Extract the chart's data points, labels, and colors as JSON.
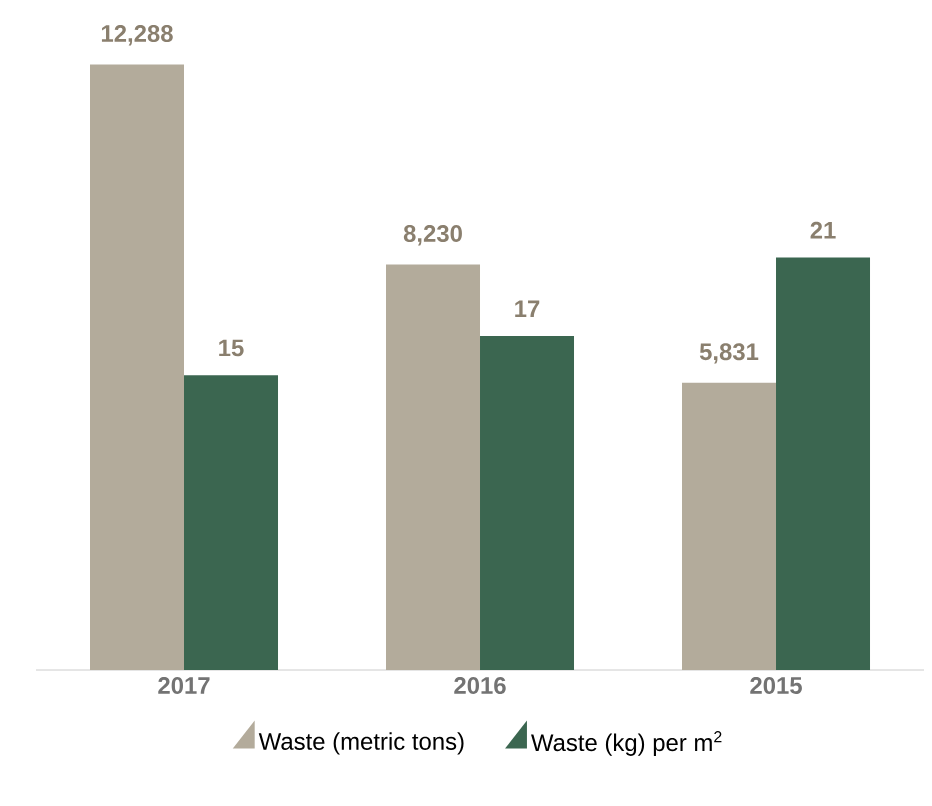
{
  "chart_data": {
    "type": "bar",
    "categories": [
      "2017",
      "2016",
      "2015"
    ],
    "series": [
      {
        "name": "Waste (metric tons)",
        "color": "#b3ab9b",
        "values": [
          12288,
          8230,
          5831
        ],
        "value_labels": [
          "12,288",
          "8,230",
          "5,831"
        ]
      },
      {
        "name": "Waste (kg) per m$^{2}$",
        "color": "#3b6650",
        "values": [
          15,
          17,
          21
        ],
        "value_labels": [
          "15",
          "17",
          "21"
        ],
        "axis": "y2"
      }
    ],
    "tick_labels": "x",
    "legend": "bottom"
  }
}
